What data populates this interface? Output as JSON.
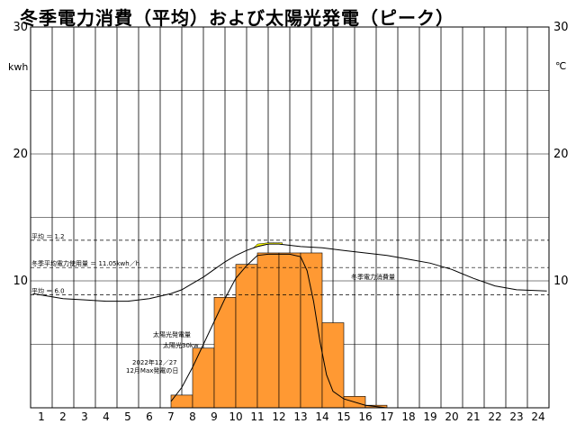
{
  "chart_data": {
    "type": "bar",
    "title": "冬季電力消費（平均）および太陽光発電（ピーク）",
    "ylabel_left": "kwh",
    "ylabel_right": "℃",
    "ylim": [
      0,
      30
    ],
    "y_ticks": [
      10,
      20,
      30
    ],
    "right_ticks": [
      10,
      20,
      30
    ],
    "x_ticks": [
      1,
      2,
      3,
      4,
      5,
      6,
      7,
      8,
      9,
      10,
      11,
      12,
      13,
      14,
      15,
      16,
      17,
      18,
      19,
      20,
      21,
      22,
      23,
      24
    ],
    "grid": true,
    "solar_bars": {
      "color": "#ff9933",
      "hours": [
        7,
        8,
        9,
        10,
        11,
        12,
        13,
        14,
        15,
        16
      ],
      "values": [
        1.0,
        4.7,
        8.7,
        11.3,
        12.2,
        12.2,
        12.2,
        6.7,
        0.9,
        0.2
      ]
    },
    "surplus_fill": {
      "color": "#ffff00"
    },
    "consumption_curve": {
      "x": [
        0.6,
        2,
        3,
        4,
        5,
        6,
        7,
        7.5,
        8,
        8.5,
        9,
        9.5,
        10,
        10.5,
        11,
        11.5,
        12,
        12.5,
        13,
        14,
        15,
        16,
        17,
        18,
        19,
        20,
        21,
        22,
        23,
        24.4
      ],
      "values": [
        9.0,
        8.6,
        8.5,
        8.4,
        8.4,
        8.6,
        9.0,
        9.3,
        9.8,
        10.3,
        10.9,
        11.5,
        12.0,
        12.4,
        12.7,
        12.9,
        12.9,
        12.8,
        12.7,
        12.6,
        12.4,
        12.2,
        12.0,
        11.7,
        11.4,
        10.9,
        10.2,
        9.6,
        9.3,
        9.2
      ]
    },
    "solar_curve": {
      "x": [
        7.0,
        7.5,
        8,
        8.5,
        9,
        9.5,
        10,
        10.5,
        11,
        11.5,
        12,
        12.5,
        13,
        13.3,
        13.6,
        13.9,
        14.2,
        14.5,
        15,
        16,
        17
      ],
      "values": [
        0.5,
        1.6,
        3.2,
        5.0,
        6.8,
        8.6,
        10.2,
        11.2,
        12.0,
        12.1,
        12.1,
        12.1,
        11.9,
        10.8,
        8.4,
        5.2,
        2.6,
        1.3,
        0.7,
        0.2,
        0.0
      ]
    },
    "reference_lines": [
      {
        "value": 13.2,
        "label": "平均 ＝ 1.2"
      },
      {
        "value": 11.05,
        "label": "冬季平均電力使用量 ＝ 11.05kwh／h"
      },
      {
        "value": 8.9,
        "label": "平均 ＝ 6.0"
      }
    ],
    "annotations": {
      "consumption_label": "冬季電力消費量",
      "solar_label_1": "太陽光発電量",
      "solar_label_2": "太陽光30kw",
      "date_label_1": "2022年12／27",
      "date_label_2": "12月Max発電の日"
    }
  }
}
